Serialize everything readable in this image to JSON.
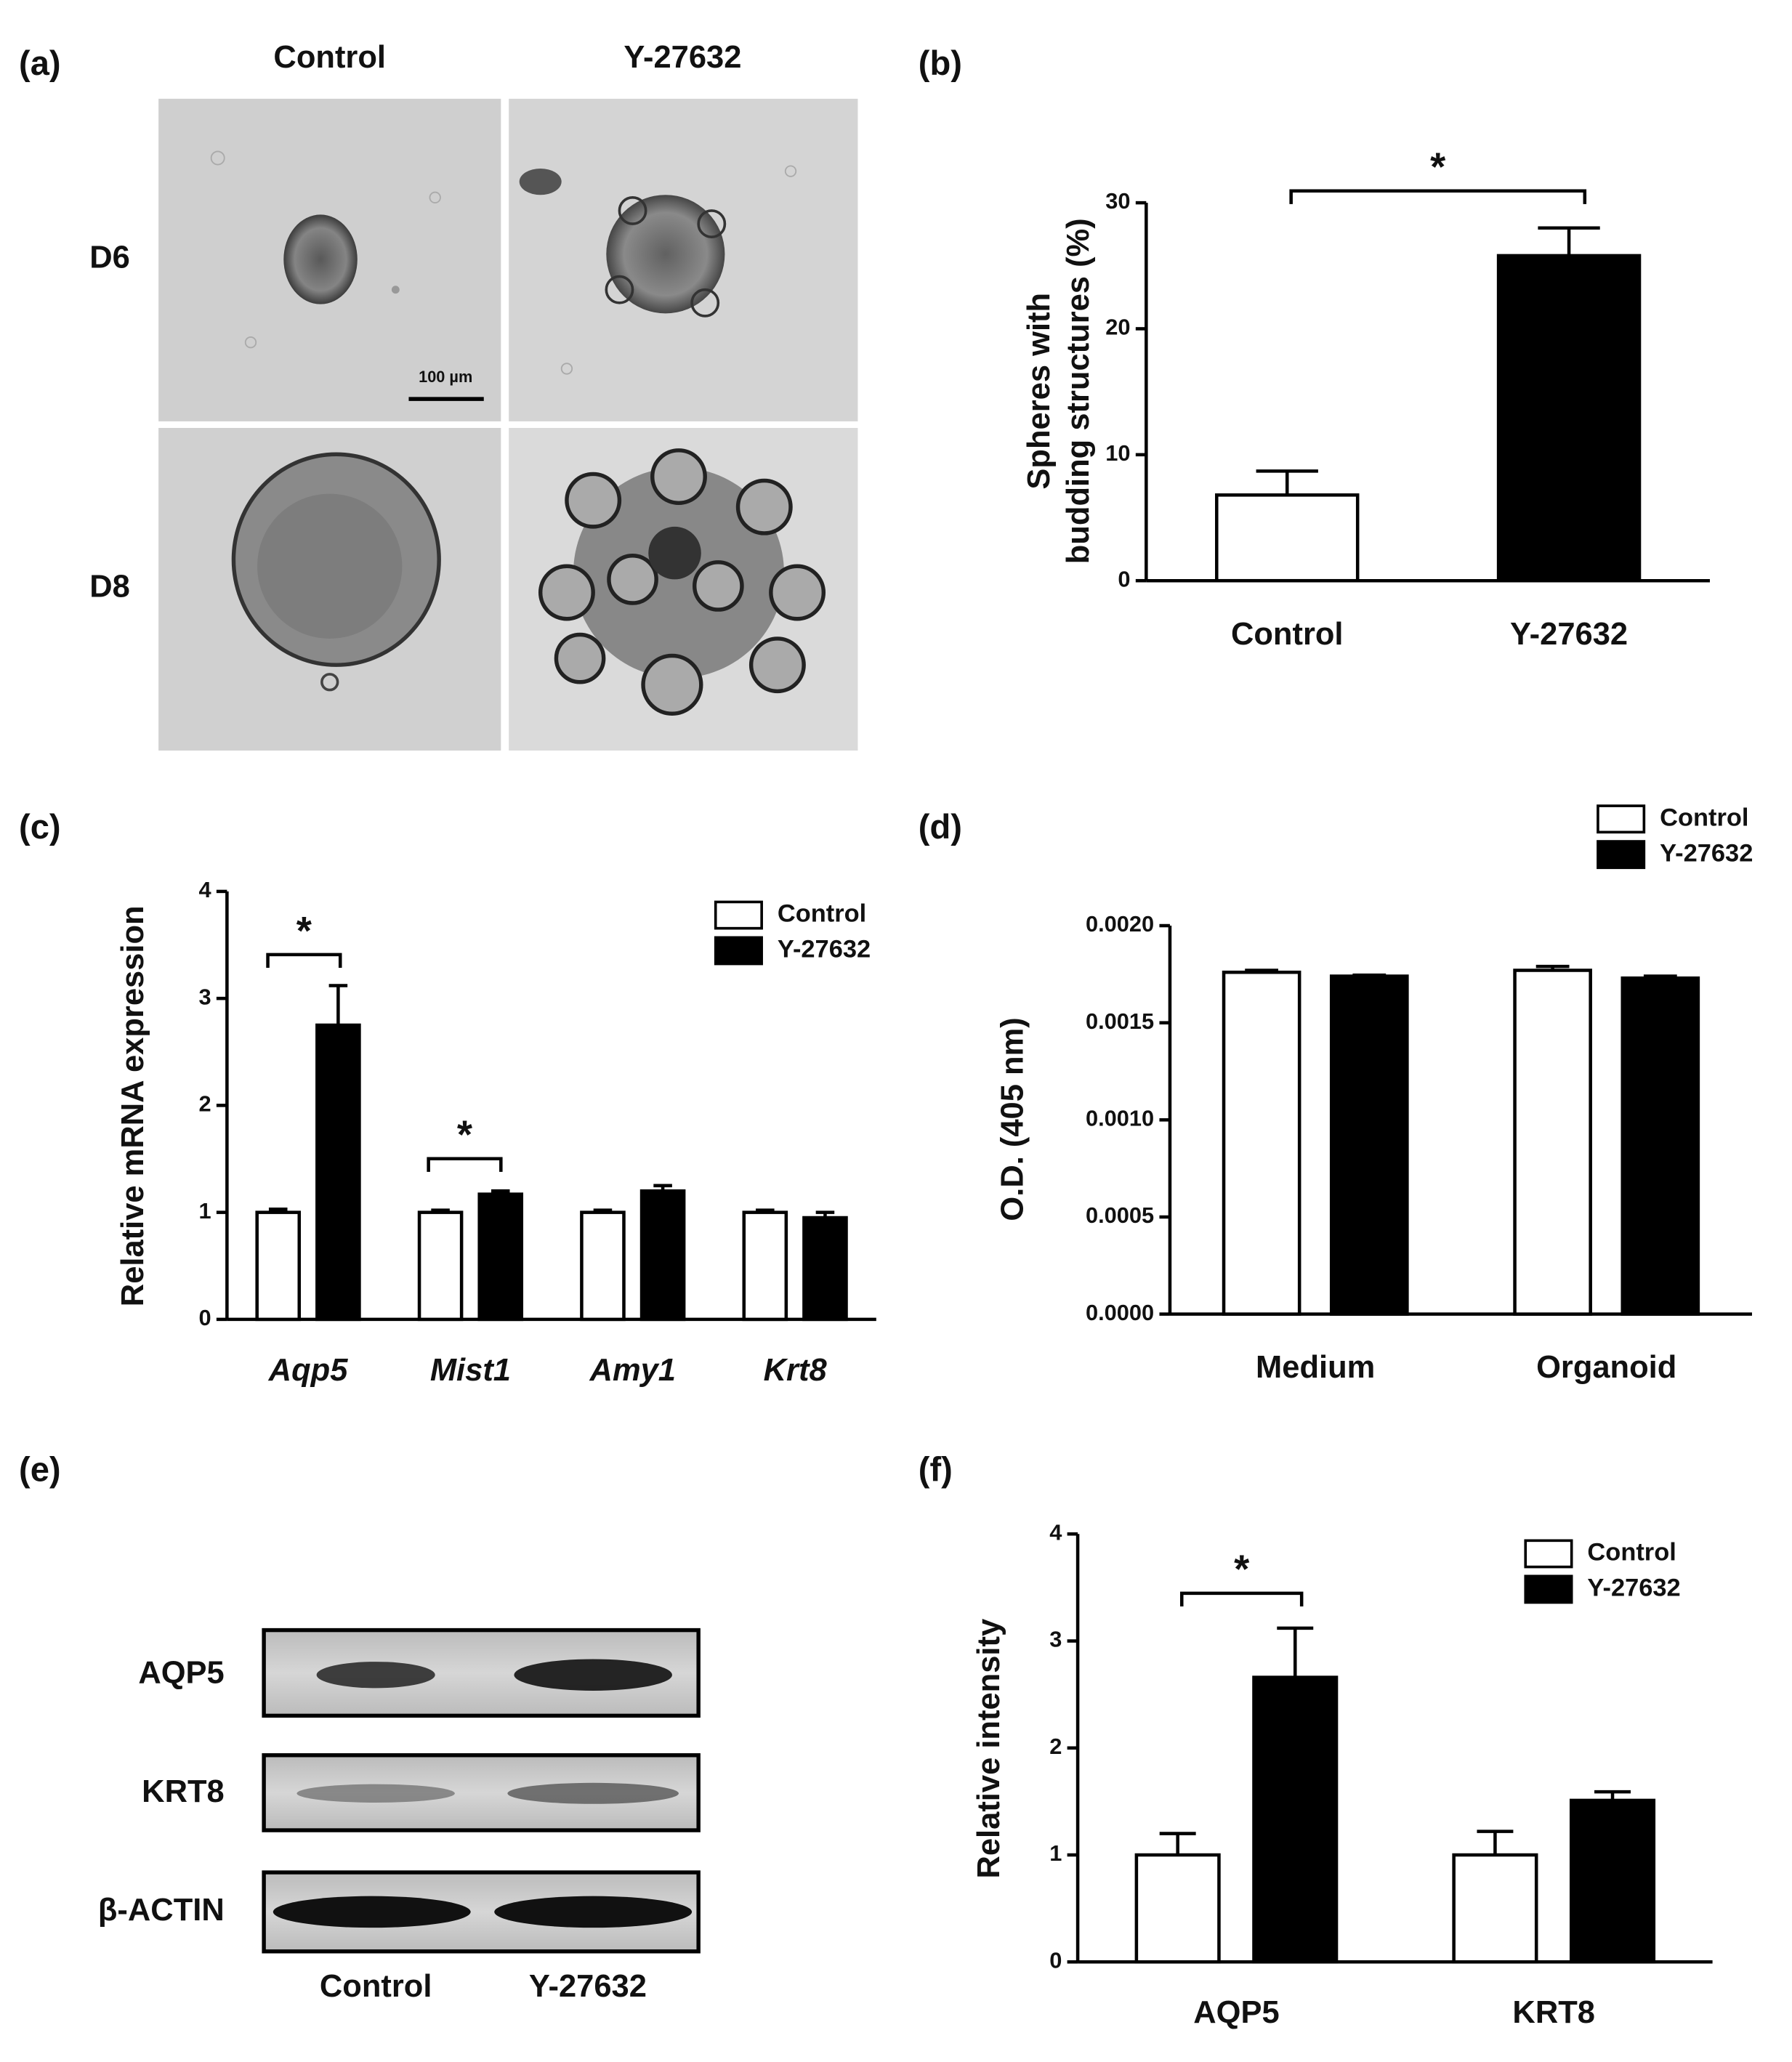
{
  "panel_labels": [
    "(a)",
    "(b)",
    "(c)",
    "(d)",
    "(e)",
    "(f)"
  ],
  "micrographs": {
    "columns": [
      "Control",
      "Y-27632"
    ],
    "rows": [
      "D6",
      "D8"
    ],
    "scale_bar": "100 µm"
  },
  "western_blot": {
    "bands": [
      "AQP5",
      "KRT8",
      "β-ACTIN"
    ],
    "lanes": [
      "Control",
      "Y-27632"
    ]
  },
  "chart_data": [
    {
      "type": "bar",
      "ylabel": [
        "Spheres with",
        "budding structures (%)"
      ],
      "categories": [
        "Control",
        "Y-27632"
      ],
      "values": [
        6.8,
        25.8
      ],
      "errors": [
        1.9,
        2.2
      ],
      "colors": [
        "#ffffff",
        "#000000"
      ],
      "ylim": [
        0,
        30
      ],
      "yticks": [
        0,
        10,
        20,
        30
      ],
      "annotations": [
        "*"
      ]
    },
    {
      "type": "bar",
      "ylabel": "Relative mRNA expression",
      "category_style": "italic",
      "categories": [
        "Aqp5",
        "Mist1",
        "Amy1",
        "Krt8"
      ],
      "series": [
        {
          "name": "Control",
          "color": "#ffffff",
          "values": [
            1.0,
            1.0,
            1.0,
            1.0
          ],
          "errors": [
            0.03,
            0.02,
            0.02,
            0.02
          ]
        },
        {
          "name": "Y-27632",
          "color": "#000000",
          "values": [
            2.75,
            1.17,
            1.2,
            0.95
          ],
          "errors": [
            0.37,
            0.03,
            0.05,
            0.05
          ]
        }
      ],
      "ylim": [
        0,
        4
      ],
      "yticks": [
        0,
        1,
        2,
        3,
        4
      ],
      "legend": "upper right",
      "annotations": [
        "*",
        "*"
      ]
    },
    {
      "type": "bar",
      "ylabel": "O.D. (405 nm)",
      "categories": [
        "Medium",
        "Organoid"
      ],
      "series": [
        {
          "name": "Control",
          "color": "#ffffff",
          "values": [
            0.00176,
            0.00177
          ],
          "errors": [
            1e-05,
            2e-05
          ]
        },
        {
          "name": "Y-27632",
          "color": "#000000",
          "values": [
            0.00174,
            0.00173
          ],
          "errors": [
            5e-06,
            1e-05
          ]
        }
      ],
      "ylim": [
        0,
        0.002
      ],
      "yticks": [
        {
          "value": 0,
          "label": "0.0000"
        },
        {
          "value": 0.0005,
          "label": "0.0005"
        },
        {
          "value": 0.001,
          "label": "0.0010"
        },
        {
          "value": 0.0015,
          "label": "0.0015"
        },
        {
          "value": 0.002,
          "label": "0.0020"
        }
      ],
      "legend": "upper right"
    },
    {
      "type": "bar",
      "ylabel": "Relative intensity",
      "categories": [
        "AQP5",
        "KRT8"
      ],
      "series": [
        {
          "name": "Control",
          "color": "#ffffff",
          "values": [
            1.0,
            1.0
          ],
          "errors": [
            0.2,
            0.22
          ]
        },
        {
          "name": "Y-27632",
          "color": "#000000",
          "values": [
            2.66,
            1.51
          ],
          "errors": [
            0.46,
            0.08
          ]
        }
      ],
      "ylim": [
        0,
        4
      ],
      "yticks": [
        0,
        1,
        2,
        3,
        4
      ],
      "legend": "upper right",
      "annotations": [
        "*"
      ]
    }
  ]
}
